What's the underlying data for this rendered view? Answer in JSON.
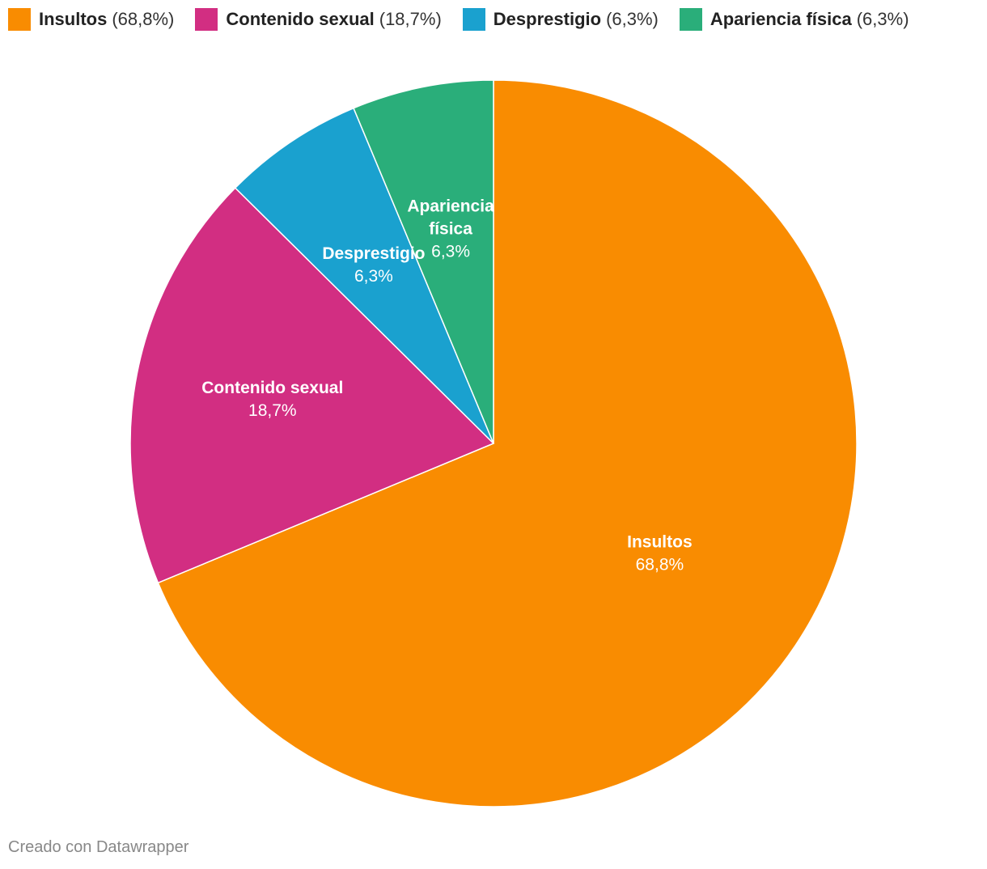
{
  "legend": {
    "items": [
      {
        "label": "Insultos",
        "pct": "(68,8%)",
        "color": "#f98c01"
      },
      {
        "label": "Contenido sexual",
        "pct": "(18,7%)",
        "color": "#d22e82"
      },
      {
        "label": "Desprestigio",
        "pct": "(6,3%)",
        "color": "#1aa1cf"
      },
      {
        "label": "Apariencia física",
        "pct": "(6,3%)",
        "color": "#2aae7a"
      }
    ]
  },
  "chart_data": {
    "type": "pie",
    "categories": [
      "Insultos",
      "Contenido sexual",
      "Desprestigio",
      "Apariencia física"
    ],
    "values": [
      68.8,
      18.7,
      6.3,
      6.3
    ],
    "value_labels": [
      "68,8%",
      "18,7%",
      "6,3%",
      "6,3%"
    ],
    "colors": [
      "#f98c01",
      "#d22e82",
      "#1aa1cf",
      "#2aae7a"
    ],
    "unit": "%",
    "direction": "clockwise from top",
    "legend_position": "top"
  },
  "footer": {
    "credit": "Creado con Datawrapper"
  }
}
